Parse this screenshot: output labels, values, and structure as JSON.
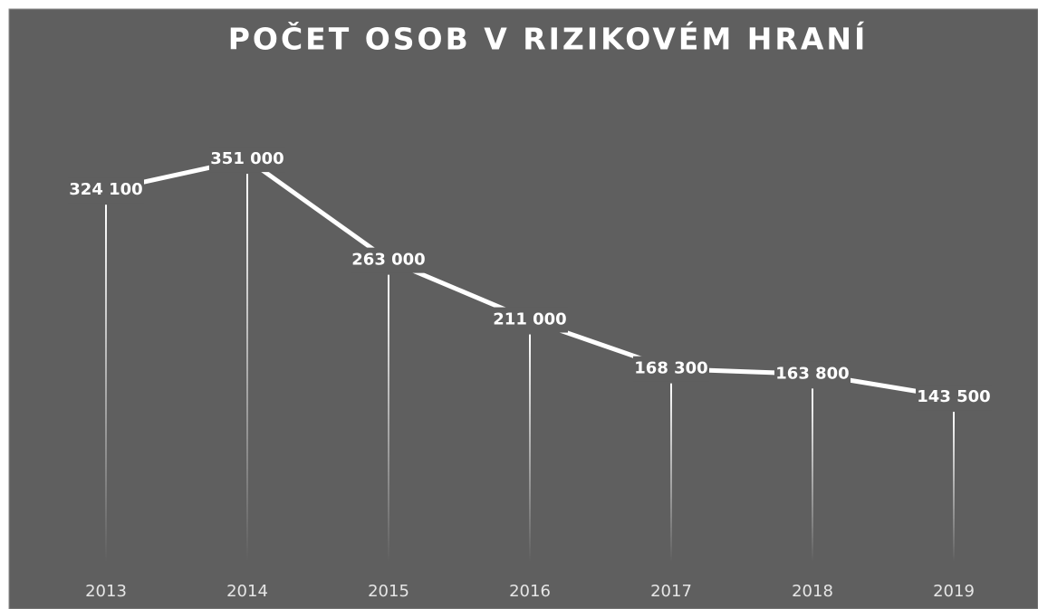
{
  "chart_data": {
    "type": "line",
    "title": "POČET OSOB V RIZIKOVÉM HRANÍ",
    "categories": [
      "2013",
      "2014",
      "2015",
      "2016",
      "2017",
      "2018",
      "2019"
    ],
    "values": [
      324100,
      351000,
      263000,
      211000,
      168300,
      163800,
      143500
    ],
    "value_labels": [
      "324 100",
      "351 000",
      "263 000",
      "211 000",
      "168 300",
      "163 800",
      "143 500"
    ],
    "color": "#ffffff",
    "ylim": [
      0,
      400000
    ]
  }
}
